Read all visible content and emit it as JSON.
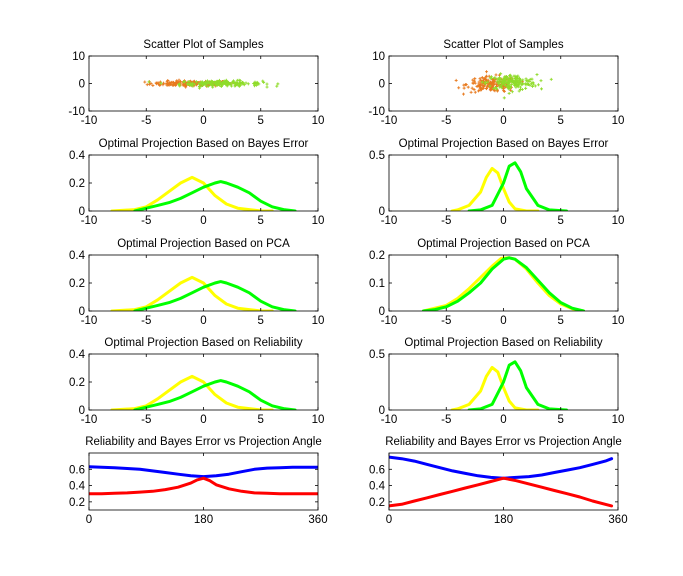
{
  "chart_data": [
    {
      "type": "scatter",
      "title": "Scatter Plot of Samples",
      "xlim": [
        -10,
        10
      ],
      "ylim": [
        -10,
        10
      ],
      "xticks": [
        -10,
        -5,
        0,
        5,
        10
      ],
      "yticks": [
        -10,
        0,
        10
      ],
      "series": [
        {
          "color": "#e87a1e",
          "cx": -1.0,
          "cy": 0.0,
          "sx": 1.8,
          "sy": 0.5,
          "n": 170
        },
        {
          "color": "#8fdc2a",
          "cx": 1.5,
          "cy": 0.0,
          "sx": 1.8,
          "sy": 0.5,
          "n": 170
        }
      ]
    },
    {
      "type": "scatter",
      "title": "Scatter Plot of Samples",
      "xlim": [
        -10,
        10
      ],
      "ylim": [
        -10,
        10
      ],
      "xticks": [
        -10,
        -5,
        0,
        5,
        10
      ],
      "yticks": [
        -10,
        0,
        10
      ],
      "series": [
        {
          "color": "#e87a1e",
          "cx": -1.0,
          "cy": -0.3,
          "sx": 1.1,
          "sy": 1.4,
          "n": 170
        },
        {
          "color": "#8fdc2a",
          "cx": 0.7,
          "cy": 0.4,
          "sx": 1.1,
          "sy": 1.4,
          "n": 170
        }
      ]
    },
    {
      "type": "line",
      "title": "Optimal Projection Based on Bayes Error",
      "xlim": [
        -10,
        10
      ],
      "ylim": [
        0,
        0.4
      ],
      "xticks": [
        -10,
        -5,
        0,
        5,
        10
      ],
      "yticks": [
        0,
        0.2,
        0.4
      ],
      "series": [
        {
          "color": "#ffff00",
          "x": [
            -8,
            -6,
            -5,
            -4,
            -3,
            -2,
            -1,
            0,
            1,
            2,
            3,
            4,
            5,
            6
          ],
          "y": [
            0.0,
            0.01,
            0.03,
            0.08,
            0.14,
            0.2,
            0.24,
            0.2,
            0.11,
            0.05,
            0.02,
            0.01,
            0.0,
            0.0
          ]
        },
        {
          "color": "#00ff00",
          "x": [
            -6,
            -5,
            -4,
            -3,
            -2,
            -1,
            0,
            1,
            1.5,
            2,
            3,
            4,
            5,
            6,
            7,
            8
          ],
          "y": [
            0.0,
            0.02,
            0.04,
            0.06,
            0.09,
            0.13,
            0.17,
            0.2,
            0.21,
            0.2,
            0.17,
            0.13,
            0.07,
            0.03,
            0.01,
            0.0
          ]
        }
      ]
    },
    {
      "type": "line",
      "title": "Optimal Projection Based on Bayes Error",
      "xlim": [
        -10,
        10
      ],
      "ylim": [
        0,
        0.5
      ],
      "xticks": [
        -10,
        -5,
        0,
        5,
        10
      ],
      "yticks": [
        0,
        0.5
      ],
      "series": [
        {
          "color": "#ffff00",
          "x": [
            -4.5,
            -4,
            -3,
            -2,
            -1.5,
            -1,
            -0.5,
            0,
            0.5,
            1,
            2,
            3
          ],
          "y": [
            0.0,
            0.01,
            0.05,
            0.17,
            0.3,
            0.38,
            0.34,
            0.2,
            0.08,
            0.02,
            0.0,
            0.0
          ]
        },
        {
          "color": "#00ff00",
          "x": [
            -3,
            -2,
            -1,
            0,
            0.5,
            1,
            1.5,
            2,
            3,
            4,
            5.5
          ],
          "y": [
            0.0,
            0.01,
            0.05,
            0.25,
            0.4,
            0.43,
            0.35,
            0.2,
            0.05,
            0.01,
            0.0
          ]
        }
      ]
    },
    {
      "type": "line",
      "title": "Optimal Projection Based on PCA",
      "xlim": [
        -10,
        10
      ],
      "ylim": [
        0,
        0.4
      ],
      "xticks": [
        -10,
        -5,
        0,
        5,
        10
      ],
      "yticks": [
        0,
        0.2,
        0.4
      ],
      "series": [
        {
          "color": "#ffff00",
          "x": [
            -8,
            -6,
            -5,
            -4,
            -3,
            -2,
            -1,
            0,
            1,
            2,
            3,
            4,
            5,
            6
          ],
          "y": [
            0.0,
            0.01,
            0.03,
            0.08,
            0.14,
            0.2,
            0.24,
            0.2,
            0.11,
            0.05,
            0.02,
            0.01,
            0.0,
            0.0
          ]
        },
        {
          "color": "#00ff00",
          "x": [
            -6,
            -5,
            -4,
            -3,
            -2,
            -1,
            0,
            1,
            1.5,
            2,
            3,
            4,
            5,
            6,
            7,
            8
          ],
          "y": [
            0.0,
            0.02,
            0.04,
            0.06,
            0.09,
            0.13,
            0.17,
            0.2,
            0.21,
            0.2,
            0.17,
            0.13,
            0.07,
            0.03,
            0.01,
            0.0
          ]
        }
      ]
    },
    {
      "type": "line",
      "title": "Optimal Projection Based on PCA",
      "xlim": [
        -10,
        10
      ],
      "ylim": [
        0,
        0.2
      ],
      "xticks": [
        -10,
        -5,
        0,
        5,
        10
      ],
      "yticks": [
        0,
        0.1,
        0.2
      ],
      "series": [
        {
          "color": "#ffff00",
          "x": [
            -7,
            -6,
            -5,
            -4,
            -3,
            -2,
            -1,
            -0.2,
            0.5,
            1,
            2,
            3,
            4,
            5,
            6,
            7
          ],
          "y": [
            0.0,
            0.01,
            0.02,
            0.045,
            0.08,
            0.12,
            0.16,
            0.188,
            0.19,
            0.185,
            0.15,
            0.1,
            0.055,
            0.025,
            0.008,
            0.0
          ]
        },
        {
          "color": "#00ff00",
          "x": [
            -7,
            -6,
            -5,
            -4,
            -3,
            -2,
            -1,
            0,
            0.5,
            1,
            2,
            3,
            4,
            5,
            6,
            7
          ],
          "y": [
            0.0,
            0.005,
            0.015,
            0.035,
            0.065,
            0.1,
            0.15,
            0.185,
            0.19,
            0.185,
            0.155,
            0.11,
            0.065,
            0.03,
            0.01,
            0.0
          ]
        }
      ]
    },
    {
      "type": "line",
      "title": "Optimal Projection Based on Reliability",
      "xlim": [
        -10,
        10
      ],
      "ylim": [
        0,
        0.4
      ],
      "xticks": [
        -10,
        -5,
        0,
        5,
        10
      ],
      "yticks": [
        0,
        0.2,
        0.4
      ],
      "series": [
        {
          "color": "#ffff00",
          "x": [
            -8,
            -6,
            -5,
            -4,
            -3,
            -2,
            -1,
            0,
            1,
            2,
            3,
            4,
            5,
            6
          ],
          "y": [
            0.0,
            0.01,
            0.03,
            0.08,
            0.14,
            0.2,
            0.24,
            0.2,
            0.11,
            0.05,
            0.02,
            0.01,
            0.0,
            0.0
          ]
        },
        {
          "color": "#00ff00",
          "x": [
            -6,
            -5,
            -4,
            -3,
            -2,
            -1,
            0,
            1,
            1.5,
            2,
            3,
            4,
            5,
            6,
            7,
            8
          ],
          "y": [
            0.0,
            0.02,
            0.04,
            0.06,
            0.09,
            0.13,
            0.17,
            0.2,
            0.21,
            0.2,
            0.17,
            0.13,
            0.07,
            0.03,
            0.01,
            0.0
          ]
        }
      ]
    },
    {
      "type": "line",
      "title": "Optimal Projection Based on Reliability",
      "xlim": [
        -10,
        10
      ],
      "ylim": [
        0,
        0.5
      ],
      "xticks": [
        -10,
        -5,
        0,
        5,
        10
      ],
      "yticks": [
        0,
        0.5
      ],
      "series": [
        {
          "color": "#ffff00",
          "x": [
            -4.5,
            -4,
            -3,
            -2,
            -1.5,
            -1,
            -0.5,
            0,
            0.5,
            1,
            2,
            3
          ],
          "y": [
            0.0,
            0.01,
            0.05,
            0.17,
            0.3,
            0.38,
            0.34,
            0.2,
            0.08,
            0.02,
            0.0,
            0.0
          ]
        },
        {
          "color": "#00ff00",
          "x": [
            -3,
            -2,
            -1,
            0,
            0.5,
            1,
            1.5,
            2,
            3,
            4,
            5.5
          ],
          "y": [
            0.0,
            0.01,
            0.05,
            0.25,
            0.4,
            0.43,
            0.35,
            0.2,
            0.05,
            0.01,
            0.0
          ]
        }
      ]
    },
    {
      "type": "line",
      "title": "Reliability and Bayes Error vs Projection Angle",
      "xlim": [
        0,
        360
      ],
      "ylim": [
        0.1,
        0.8
      ],
      "xticks": [
        0,
        180,
        360
      ],
      "yticks": [
        0.2,
        0.4,
        0.6
      ],
      "series": [
        {
          "color": "#0000ff",
          "x": [
            0,
            20,
            40,
            60,
            80,
            100,
            120,
            140,
            160,
            180,
            200,
            220,
            240,
            260,
            280,
            300,
            320,
            340,
            360
          ],
          "y": [
            0.63,
            0.625,
            0.62,
            0.61,
            0.6,
            0.58,
            0.56,
            0.54,
            0.52,
            0.51,
            0.52,
            0.54,
            0.57,
            0.6,
            0.615,
            0.62,
            0.625,
            0.625,
            0.625
          ]
        },
        {
          "color": "#ff0000",
          "x": [
            0,
            20,
            40,
            60,
            80,
            100,
            120,
            140,
            160,
            170,
            180,
            190,
            200,
            220,
            240,
            260,
            280,
            300,
            320,
            340,
            360
          ],
          "y": [
            0.3,
            0.3,
            0.305,
            0.31,
            0.32,
            0.33,
            0.35,
            0.38,
            0.43,
            0.47,
            0.49,
            0.46,
            0.41,
            0.36,
            0.33,
            0.31,
            0.305,
            0.3,
            0.3,
            0.3,
            0.3
          ]
        }
      ]
    },
    {
      "type": "line",
      "title": "Reliability and Bayes Error vs Projection Angle",
      "xlim": [
        0,
        360
      ],
      "ylim": [
        0.1,
        0.8
      ],
      "xticks": [
        0,
        180,
        360
      ],
      "yticks": [
        0.2,
        0.4,
        0.6
      ],
      "series": [
        {
          "color": "#0000ff",
          "x": [
            0,
            20,
            40,
            60,
            80,
            100,
            120,
            140,
            160,
            180,
            200,
            220,
            240,
            260,
            280,
            300,
            320,
            340,
            350
          ],
          "y": [
            0.75,
            0.73,
            0.7,
            0.66,
            0.62,
            0.58,
            0.55,
            0.52,
            0.5,
            0.49,
            0.5,
            0.51,
            0.53,
            0.56,
            0.59,
            0.62,
            0.66,
            0.7,
            0.73
          ]
        },
        {
          "color": "#ff0000",
          "x": [
            0,
            20,
            40,
            60,
            80,
            100,
            120,
            140,
            160,
            180,
            200,
            220,
            240,
            260,
            280,
            300,
            320,
            340,
            350
          ],
          "y": [
            0.15,
            0.17,
            0.21,
            0.25,
            0.29,
            0.33,
            0.37,
            0.41,
            0.45,
            0.49,
            0.46,
            0.42,
            0.38,
            0.34,
            0.3,
            0.26,
            0.21,
            0.17,
            0.15
          ]
        }
      ]
    }
  ]
}
